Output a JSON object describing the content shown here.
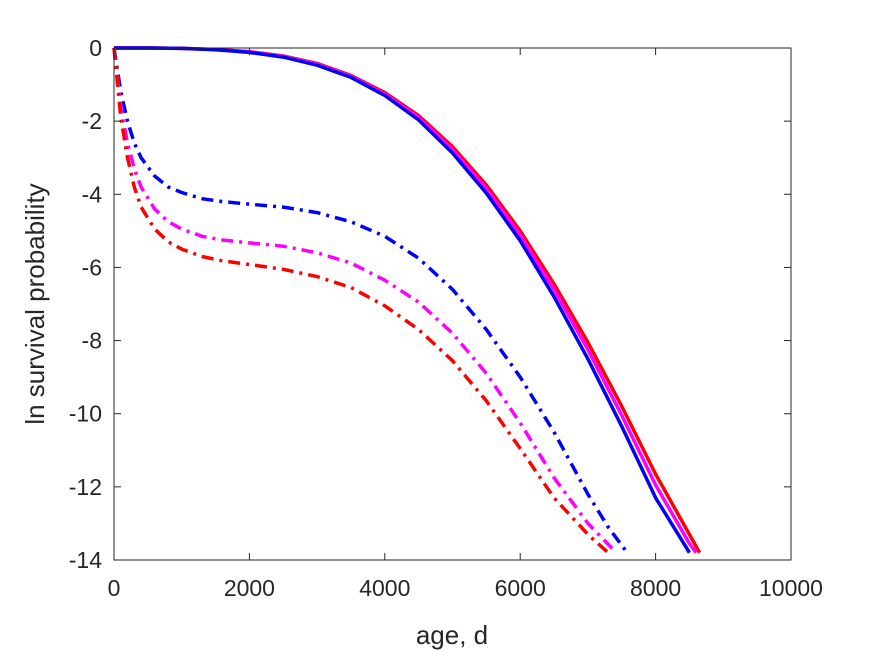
{
  "chart_data": {
    "type": "line",
    "title": "",
    "xlabel": "age, d",
    "ylabel": "ln survival probability",
    "xlim": [
      0,
      10000
    ],
    "ylim": [
      -14,
      0
    ],
    "xticks": [
      0,
      2000,
      4000,
      6000,
      8000,
      10000
    ],
    "xtick_labels": [
      "0",
      "2000",
      "4000",
      "6000",
      "8000",
      "10000"
    ],
    "yticks": [
      0,
      -2,
      -4,
      -6,
      -8,
      -10,
      -12,
      -14
    ],
    "ytick_labels": [
      "0",
      "-2",
      "-4",
      "-6",
      "-8",
      "-10",
      "-12",
      "-14"
    ],
    "grid": false,
    "legend": "none",
    "series": [
      {
        "color": "#ff0000",
        "style": "solid",
        "x": [
          0,
          500,
          1000,
          1500,
          2000,
          2500,
          3000,
          3500,
          4000,
          4500,
          5000,
          5500,
          6000,
          6500,
          7000,
          7500,
          8000,
          8500,
          8650
        ],
        "y": [
          0,
          0,
          -0.01,
          -0.04,
          -0.1,
          -0.22,
          -0.42,
          -0.75,
          -1.22,
          -1.85,
          -2.7,
          -3.75,
          -5.0,
          -6.45,
          -8.05,
          -9.8,
          -11.65,
          -13.3,
          -13.8
        ]
      },
      {
        "color": "#ff00ff",
        "style": "solid",
        "x": [
          0,
          500,
          1000,
          1500,
          2000,
          2500,
          3000,
          3500,
          4000,
          4500,
          5000,
          5500,
          6000,
          6500,
          7000,
          7500,
          8000,
          8500,
          8600
        ],
        "y": [
          0,
          0,
          -0.01,
          -0.04,
          -0.1,
          -0.23,
          -0.44,
          -0.77,
          -1.26,
          -1.9,
          -2.78,
          -3.85,
          -5.12,
          -6.6,
          -8.25,
          -10.05,
          -11.95,
          -13.55,
          -13.8
        ]
      },
      {
        "color": "#0000ff",
        "style": "solid",
        "x": [
          0,
          500,
          1000,
          1500,
          2000,
          2500,
          3000,
          3500,
          4000,
          4500,
          5000,
          5500,
          6000,
          6500,
          7000,
          7500,
          8000,
          8450,
          8500
        ],
        "y": [
          0,
          0,
          -0.01,
          -0.05,
          -0.12,
          -0.25,
          -0.47,
          -0.8,
          -1.3,
          -1.97,
          -2.87,
          -3.97,
          -5.27,
          -6.8,
          -8.5,
          -10.35,
          -12.3,
          -13.65,
          -13.8
        ]
      },
      {
        "color": "#0000ff",
        "style": "dashdot",
        "x": [
          0,
          100,
          200,
          300,
          400,
          600,
          800,
          1000,
          1300,
          1600,
          2000,
          2500,
          3000,
          3500,
          4000,
          4500,
          5000,
          5500,
          6000,
          6500,
          7000,
          7300,
          7580
        ],
        "y": [
          0,
          -1.2,
          -2.0,
          -2.6,
          -3.0,
          -3.5,
          -3.8,
          -3.95,
          -4.12,
          -4.2,
          -4.27,
          -4.35,
          -4.5,
          -4.75,
          -5.15,
          -5.75,
          -6.6,
          -7.7,
          -9.0,
          -10.5,
          -12.2,
          -13.1,
          -13.8
        ]
      },
      {
        "color": "#ff00ff",
        "style": "dashdot",
        "x": [
          0,
          100,
          200,
          300,
          400,
          600,
          800,
          1000,
          1300,
          1600,
          2000,
          2500,
          3000,
          3500,
          4000,
          4500,
          5000,
          5500,
          6000,
          6500,
          7000,
          7420
        ],
        "y": [
          0,
          -1.6,
          -2.6,
          -3.3,
          -3.8,
          -4.4,
          -4.75,
          -4.95,
          -5.15,
          -5.25,
          -5.33,
          -5.42,
          -5.6,
          -5.88,
          -6.35,
          -6.95,
          -7.8,
          -8.9,
          -10.25,
          -11.75,
          -13.0,
          -13.8
        ]
      },
      {
        "color": "#ff0000",
        "style": "dashdot",
        "x": [
          0,
          100,
          200,
          300,
          400,
          600,
          800,
          1000,
          1300,
          1600,
          2000,
          2500,
          3000,
          3500,
          4000,
          4500,
          5000,
          5500,
          6000,
          6500,
          7000,
          7300
        ],
        "y": [
          0,
          -1.9,
          -3.0,
          -3.8,
          -4.35,
          -4.95,
          -5.3,
          -5.5,
          -5.7,
          -5.82,
          -5.92,
          -6.05,
          -6.25,
          -6.55,
          -7.05,
          -7.7,
          -8.55,
          -9.65,
          -10.95,
          -12.3,
          -13.3,
          -13.8
        ]
      }
    ]
  }
}
